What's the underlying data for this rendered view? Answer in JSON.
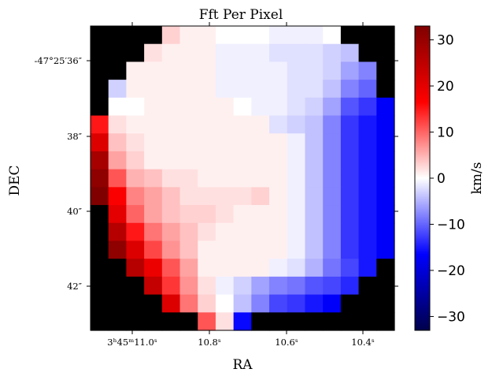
{
  "chart_data": {
    "type": "heatmap",
    "title": "Fft Per Pixel",
    "xlabel": "RA",
    "ylabel": "DEC",
    "x_tick_labels": [
      "3ʰ45ᵐ11.0ˢ",
      "10.8ˢ",
      "10.6ˢ",
      "10.4ˢ"
    ],
    "y_tick_labels": [
      "-47°25′36″",
      "38″",
      "40″",
      "42″"
    ],
    "colorbar": {
      "label": "km/s",
      "range": [
        -33,
        33
      ],
      "ticks": [
        -30,
        -20,
        -10,
        0,
        10,
        20,
        30
      ],
      "tick_labels": [
        "−30",
        "−20",
        "−10",
        "0",
        "10",
        "20",
        "30"
      ],
      "colormap": "seismic"
    },
    "nodata_color": "#000000",
    "grid_columns": 17,
    "grid_rows": 17,
    "values": [
      [
        null,
        null,
        null,
        null,
        3,
        1,
        1,
        0,
        0,
        0,
        -1,
        -1,
        -1,
        0,
        null,
        null,
        null
      ],
      [
        null,
        null,
        null,
        2,
        1,
        1,
        1,
        -1,
        -1,
        -1,
        -2,
        -2,
        -2,
        -3,
        -4,
        null,
        null
      ],
      [
        null,
        null,
        1,
        1,
        1,
        1,
        1,
        -1,
        -1,
        -1,
        -1,
        -2,
        -2,
        -3,
        -6,
        -8,
        null
      ],
      [
        null,
        -3,
        1,
        1,
        1,
        1,
        1,
        -1,
        -1,
        -1,
        -1,
        -2,
        -2,
        -4,
        -8,
        -10,
        null
      ],
      [
        null,
        0,
        0,
        1,
        1,
        1,
        1,
        1,
        0,
        -1,
        -1,
        -2,
        -3,
        -6,
        -11,
        -13,
        -17
      ],
      [
        15,
        2,
        1,
        1,
        1,
        1,
        1,
        1,
        1,
        1,
        -2,
        -3,
        -4,
        -8,
        -13,
        -15,
        -17
      ],
      [
        21,
        4,
        2,
        1,
        1,
        1,
        1,
        1,
        1,
        1,
        1,
        -1,
        -4,
        -8,
        -13,
        -15,
        -17
      ],
      [
        28,
        6,
        3,
        1,
        1,
        1,
        1,
        1,
        1,
        1,
        1,
        -1,
        -4,
        -8,
        -13,
        -15,
        -17
      ],
      [
        31,
        11,
        5,
        4,
        2,
        2,
        1,
        1,
        1,
        1,
        1,
        -1,
        -4,
        -8,
        -13,
        -15,
        -17
      ],
      [
        33,
        17,
        8,
        6,
        4,
        2,
        2,
        2,
        2,
        3,
        1,
        -1,
        -4,
        -8,
        -13,
        -15,
        -17
      ],
      [
        null,
        20,
        10,
        6,
        4,
        3,
        3,
        2,
        1,
        1,
        1,
        -1,
        -4,
        -8,
        -13,
        -15,
        -17
      ],
      [
        null,
        26,
        15,
        9,
        6,
        4,
        2,
        1,
        1,
        1,
        1,
        -1,
        -4,
        -8,
        -13,
        -15,
        -17
      ],
      [
        null,
        31,
        21,
        12,
        7,
        4,
        1,
        1,
        1,
        1,
        1,
        -1,
        -4,
        -8,
        -13,
        -15,
        -17
      ],
      [
        null,
        null,
        26,
        19,
        11,
        6,
        1,
        1,
        1,
        1,
        -1,
        -2,
        -5,
        -9,
        -12,
        -15,
        null
      ],
      [
        null,
        null,
        null,
        24,
        13,
        7,
        2,
        -1,
        -3,
        -6,
        -8,
        -9,
        -11,
        -12,
        -14,
        null,
        null
      ],
      [
        null,
        null,
        null,
        null,
        21,
        9,
        3,
        0,
        -4,
        -8,
        -12,
        -13,
        -15,
        -17,
        null,
        null,
        null
      ],
      [
        null,
        null,
        null,
        null,
        null,
        null,
        11,
        2,
        -16,
        null,
        null,
        null,
        null,
        null,
        null,
        null,
        null
      ]
    ]
  }
}
